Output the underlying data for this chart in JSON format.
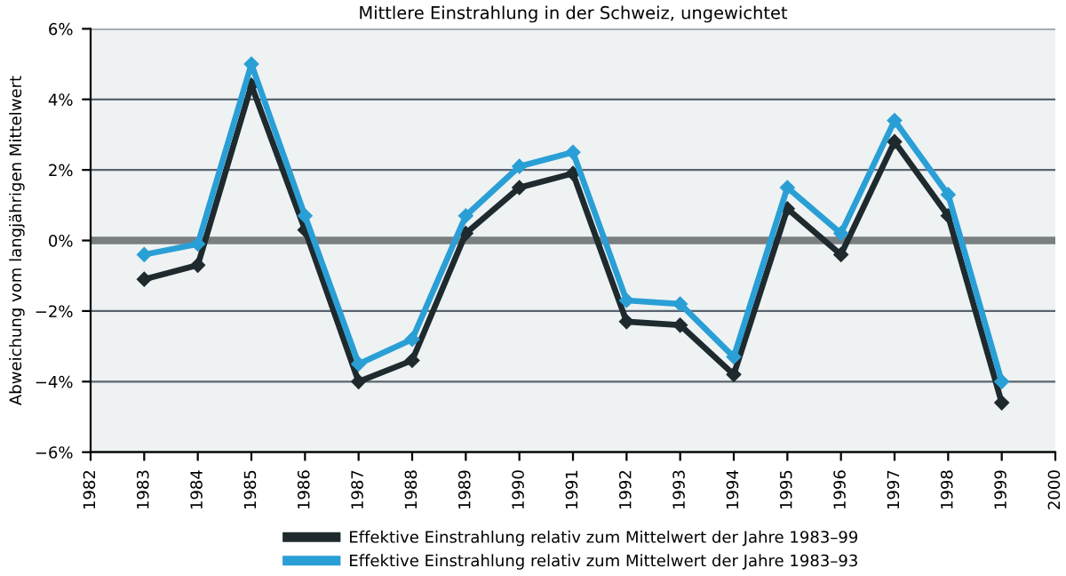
{
  "chart_data": {
    "type": "line",
    "title": "Mittlere Einstrahlung in der Schweiz, ungewichtet",
    "ylabel": "Abweichung vom langjährigen Mittelwert",
    "x": [
      1983,
      1984,
      1985,
      1986,
      1987,
      1988,
      1989,
      1990,
      1991,
      1992,
      1993,
      1994,
      1995,
      1996,
      1997,
      1998,
      1999
    ],
    "series": [
      {
        "name": "Effektive Einstrahlung relativ zum Mittelwert der Jahre 1983–99",
        "color": "#1f2a2e",
        "values": [
          -1.1,
          -0.7,
          4.4,
          0.3,
          -4.0,
          -3.4,
          0.2,
          1.5,
          1.9,
          -2.3,
          -2.4,
          -3.8,
          0.9,
          -0.4,
          2.8,
          0.7,
          -4.6
        ]
      },
      {
        "name": "Effektive Einstrahlung relativ zum Mittelwert der Jahre 1983–93",
        "color": "#2a9fd6",
        "values": [
          -0.4,
          -0.1,
          5.0,
          0.7,
          -3.5,
          -2.8,
          0.7,
          2.1,
          2.5,
          -1.7,
          -1.8,
          -3.3,
          1.5,
          0.2,
          3.4,
          1.3,
          -4.0
        ]
      }
    ],
    "xlim": [
      1982,
      2000
    ],
    "xticks": [
      1982,
      1983,
      1984,
      1985,
      1986,
      1987,
      1988,
      1989,
      1990,
      1991,
      1992,
      1993,
      1994,
      1995,
      1996,
      1997,
      1998,
      1999,
      2000
    ],
    "ylim": [
      -6,
      6
    ],
    "yticks": [
      {
        "value": -6,
        "label": "−6%"
      },
      {
        "value": -4,
        "label": "−4%"
      },
      {
        "value": -2,
        "label": "−2%"
      },
      {
        "value": 0,
        "label": "0%"
      },
      {
        "value": 2,
        "label": "2%"
      },
      {
        "value": 4,
        "label": "4%"
      },
      {
        "value": 6,
        "label": "6%"
      }
    ],
    "ref_lines": [
      {
        "axis": "y",
        "value": 0,
        "color": "#7a7f82"
      }
    ],
    "grid": "y",
    "legend": "bottom",
    "marker": "diamond",
    "line_style": "solid"
  }
}
